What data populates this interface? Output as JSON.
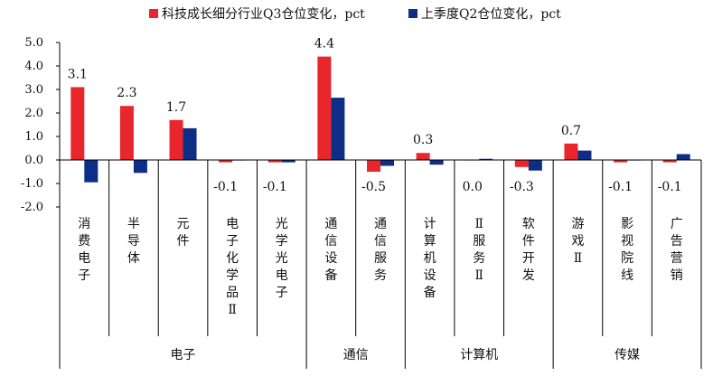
{
  "chart_data": {
    "type": "bar",
    "legend_position": "top",
    "grid": false,
    "ylim": [
      -2.0,
      5.0
    ],
    "yticks": [
      "5.0",
      "4.0",
      "3.0",
      "2.0",
      "1.0",
      "0.0",
      "-1.0",
      "-2.0"
    ],
    "categories": [
      [
        "消",
        "费",
        "电",
        "子"
      ],
      [
        "半",
        "导",
        "体"
      ],
      [
        "元",
        "件"
      ],
      [
        "电",
        "子",
        "化",
        "学",
        "品",
        "Ⅱ"
      ],
      [
        "光",
        "学",
        "光",
        "电",
        "子"
      ],
      [
        "通",
        "信",
        "设",
        "备"
      ],
      [
        "通",
        "信",
        "服",
        "务"
      ],
      [
        "计",
        "算",
        "机",
        "设",
        "备"
      ],
      [
        "Ⅱ",
        "服",
        "务",
        "Ⅱ"
      ],
      [
        "软",
        "件",
        "开",
        "发"
      ],
      [
        "游",
        "戏",
        "Ⅱ"
      ],
      [
        "影",
        "视",
        "院",
        "线"
      ],
      [
        "广",
        "告",
        "营",
        "销"
      ]
    ],
    "groups": [
      {
        "label": "电子",
        "start": 0,
        "end": 4
      },
      {
        "label": "通信",
        "start": 5,
        "end": 6
      },
      {
        "label": "计算机",
        "start": 7,
        "end": 9
      },
      {
        "label": "传媒",
        "start": 10,
        "end": 12
      }
    ],
    "series": [
      {
        "name": "科技成长细分行业Q3仓位变化，pct",
        "color": "#e8262b",
        "values": [
          3.1,
          2.3,
          1.7,
          -0.1,
          -0.1,
          4.4,
          -0.5,
          0.3,
          0.0,
          -0.3,
          0.7,
          -0.1,
          -0.1
        ],
        "labels": [
          "3.1",
          "2.3",
          "1.7",
          "-0.1",
          "-0.1",
          "4.4",
          "-0.5",
          "0.3",
          "0.0",
          "-0.3",
          "0.7",
          "-0.1",
          "-0.1"
        ]
      },
      {
        "name": "上季度Q2仓位变化，pct",
        "color": "#0d2d86",
        "values": [
          -0.95,
          -0.55,
          1.35,
          0.0,
          -0.1,
          2.65,
          -0.25,
          -0.2,
          0.05,
          -0.45,
          0.4,
          0.0,
          0.25
        ]
      }
    ]
  }
}
